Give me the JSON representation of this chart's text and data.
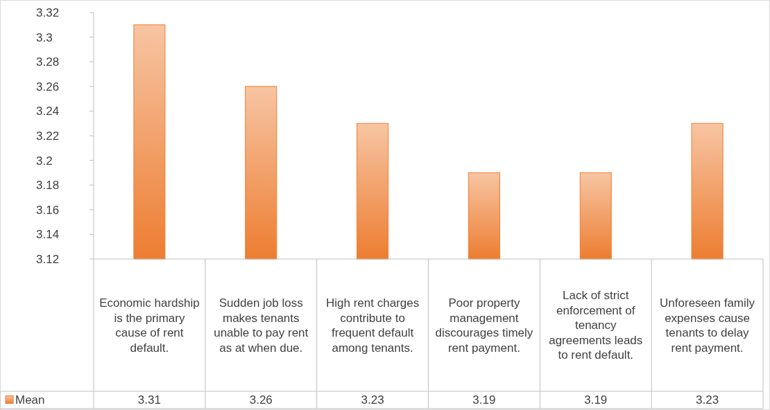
{
  "chart_data": {
    "type": "bar",
    "categories": [
      "Economic hardship is the primary cause of rent default.",
      "Sudden job loss makes tenants unable to pay rent as at when due.",
      "High rent charges contribute to frequent default among tenants.",
      "Poor property management discourages timely rent payment.",
      "Lack of strict enforcement of tenancy agreements leads to rent default.",
      "Unforeseen family expenses cause tenants to delay rent payment."
    ],
    "series": [
      {
        "name": "Mean",
        "color": "#ed7d31",
        "values": [
          3.31,
          3.26,
          3.23,
          3.19,
          3.19,
          3.23
        ]
      }
    ],
    "ylim": [
      3.12,
      3.32
    ],
    "yticks": [
      3.12,
      3.14,
      3.16,
      3.18,
      3.2,
      3.22,
      3.24,
      3.26,
      3.28,
      3.3,
      3.32
    ],
    "grid": false,
    "legend": "bottom left",
    "data_labels": true
  }
}
